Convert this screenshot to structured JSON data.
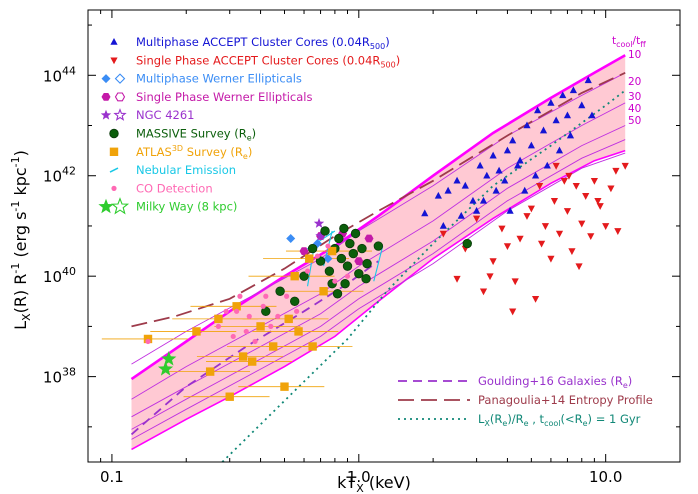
{
  "chart_data": {
    "type": "scatter",
    "title": "",
    "xlabel": "kT",
    "xlabel_sub": "X",
    "xlabel_unit": "(keV)",
    "ylabel_main": "L",
    "ylabel_sub": "X",
    "ylabel_rest": "(R) R",
    "ylabel_sup": "-1",
    "ylabel_units_a": "(erg s",
    "ylabel_units_b": " kpc",
    "ylabel_units_c": ")",
    "xscale": "log",
    "yscale": "log",
    "xlim": [
      0.08,
      20
    ],
    "ylim_log10": [
      36.3,
      45.3
    ],
    "x_ticks": [
      {
        "value": 0.1,
        "label": "0.1"
      },
      {
        "value": 1.0,
        "label": "1.0"
      },
      {
        "value": 10.0,
        "label": "10.0"
      }
    ],
    "y_ticks": [
      {
        "exp": 38,
        "base": "10",
        "sup": "38"
      },
      {
        "exp": 40,
        "base": "10",
        "sup": "40"
      },
      {
        "exp": 42,
        "base": "10",
        "sup": "42"
      },
      {
        "exp": 44,
        "base": "10",
        "sup": "44"
      }
    ],
    "legend_top": [
      {
        "name": "Multiphase ACCEPT Cluster Cores (0.04R",
        "sub": "500",
        "tail": ")",
        "color": "#1414d4",
        "marker": "tri-up"
      },
      {
        "name": "Single Phase ACCEPT Cluster Cores (0.04R",
        "sub": "500",
        "tail": ")",
        "color": "#e41a1c",
        "marker": "tri-down"
      },
      {
        "name": "Multiphase Werner Ellipticals",
        "color": "#3b8df5",
        "marker": "diamond"
      },
      {
        "name": "Single Phase Werner Ellipticals",
        "color": "#c41aa8",
        "marker": "hexagon"
      },
      {
        "name": "NGC 4261",
        "color": "#9a32cd",
        "marker": "star"
      },
      {
        "name": "MASSIVE Survey (R",
        "sub": "e",
        "tail": ")",
        "color": "#0b5e0b",
        "marker": "circle"
      },
      {
        "name": "ATLAS",
        "sup": "3D",
        "tail2": " Survey (R",
        "sub": "e",
        "tail": ")",
        "color": "#f0a30a",
        "marker": "square"
      },
      {
        "name": "Nebular Emission",
        "color": "#18c8e6",
        "marker": "dash"
      },
      {
        "name": "CO Detection",
        "color": "#ff69b4",
        "marker": "dot"
      },
      {
        "name": "Milky Way (8 kpc)",
        "color": "#2ecc2e",
        "marker": "bigstar"
      }
    ],
    "legend_bottom": [
      {
        "name": "Goulding+16 Galaxies (R",
        "sub": "e",
        "tail": ")",
        "color": "#9932cc",
        "style": "dash"
      },
      {
        "name": "Panagoulia+14 Entropy Profile",
        "color": "#9e3b4b",
        "style": "longdash"
      },
      {
        "name": "L",
        "sub": "X",
        "tail": "(R",
        "sub2": "e",
        "tail2": ")/R",
        "sub3": "e",
        "tail3": " , t",
        "sub4": "cool",
        "tail4": "(<R",
        "sub5": "e",
        "tail5": ") = 1 Gyr",
        "color": "#118877",
        "style": "dot"
      }
    ],
    "tcool_header": "t",
    "tcool_header_sub": "cool",
    "tcool_header_tail": "/t",
    "tcool_header_sub2": "ff",
    "tcool_labels": [
      {
        "label": "10",
        "log_y": 44.0
      },
      {
        "label": "20",
        "log_y": 43.4
      },
      {
        "label": "30",
        "log_y": 42.95
      },
      {
        "label": "40",
        "log_y": 42.7
      },
      {
        "label": "50",
        "log_y": 42.42
      }
    ],
    "tcool_lines": [
      [
        [
          0.12,
          38.25
        ],
        [
          0.2,
          38.9
        ],
        [
          0.4,
          39.7
        ],
        [
          0.7,
          40.35
        ],
        [
          1.0,
          40.9
        ],
        [
          2.0,
          41.8
        ],
        [
          4.0,
          42.8
        ],
        [
          8.0,
          43.6
        ],
        [
          12.0,
          44.05
        ]
      ],
      [
        [
          0.12,
          37.55
        ],
        [
          0.2,
          38.2
        ],
        [
          0.4,
          39.0
        ],
        [
          0.7,
          39.65
        ],
        [
          1.0,
          40.2
        ],
        [
          2.0,
          41.1
        ],
        [
          4.0,
          42.15
        ],
        [
          8.0,
          43.0
        ],
        [
          12.0,
          43.45
        ]
      ],
      [
        [
          0.12,
          37.2
        ],
        [
          0.2,
          37.8
        ],
        [
          0.4,
          38.6
        ],
        [
          0.7,
          39.25
        ],
        [
          1.0,
          39.8
        ],
        [
          2.0,
          40.7
        ],
        [
          4.0,
          41.75
        ],
        [
          8.0,
          42.6
        ],
        [
          12.0,
          43.0
        ]
      ],
      [
        [
          0.12,
          36.95
        ],
        [
          0.2,
          37.55
        ],
        [
          0.4,
          38.35
        ],
        [
          0.7,
          39.0
        ],
        [
          1.0,
          39.55
        ],
        [
          2.0,
          40.45
        ],
        [
          4.0,
          41.5
        ],
        [
          8.0,
          42.35
        ],
        [
          12.0,
          42.72
        ]
      ],
      [
        [
          0.12,
          36.75
        ],
        [
          0.2,
          37.35
        ],
        [
          0.4,
          38.15
        ],
        [
          0.7,
          38.8
        ],
        [
          1.0,
          39.35
        ],
        [
          2.0,
          40.25
        ],
        [
          4.0,
          41.3
        ],
        [
          8.0,
          42.15
        ],
        [
          12.0,
          42.45
        ]
      ]
    ],
    "band_upper": [
      [
        0.12,
        37.95
      ],
      [
        0.2,
        38.7
      ],
      [
        0.3,
        39.3
      ],
      [
        0.5,
        40.0
      ],
      [
        0.8,
        40.6
      ],
      [
        1.2,
        41.2
      ],
      [
        2.0,
        42.0
      ],
      [
        3.5,
        42.85
      ],
      [
        6.0,
        43.55
      ],
      [
        9.0,
        44.05
      ],
      [
        12.0,
        44.4
      ]
    ],
    "band_lower": [
      [
        0.12,
        36.55
      ],
      [
        0.2,
        37.15
      ],
      [
        0.3,
        37.6
      ],
      [
        0.5,
        38.2
      ],
      [
        0.8,
        38.8
      ],
      [
        1.2,
        39.5
      ],
      [
        2.0,
        40.35
      ],
      [
        3.5,
        41.15
      ],
      [
        6.0,
        41.85
      ],
      [
        9.0,
        42.3
      ],
      [
        12.0,
        42.5
      ]
    ],
    "goulding": [
      [
        0.12,
        36.85
      ],
      [
        0.2,
        37.8
      ],
      [
        0.35,
        38.6
      ],
      [
        0.6,
        39.3
      ],
      [
        0.9,
        39.85
      ],
      [
        1.2,
        40.3
      ]
    ],
    "panagoulia": [
      [
        0.12,
        39.0
      ],
      [
        0.18,
        39.2
      ],
      [
        0.3,
        39.55
      ],
      [
        0.5,
        40.15
      ],
      [
        0.8,
        40.8
      ],
      [
        1.2,
        41.3
      ],
      [
        2.0,
        41.9
      ],
      [
        4.0,
        42.8
      ],
      [
        8.0,
        43.65
      ],
      [
        12.0,
        44.05
      ]
    ],
    "tcool_1gyr": [
      [
        0.28,
        36.3
      ],
      [
        0.4,
        37.05
      ],
      [
        0.6,
        37.9
      ],
      [
        0.9,
        38.75
      ],
      [
        1.3,
        39.7
      ],
      [
        2.0,
        40.65
      ],
      [
        3.5,
        41.8
      ],
      [
        6.0,
        42.6
      ],
      [
        10.0,
        43.4
      ],
      [
        12.0,
        43.7
      ]
    ],
    "series": [
      {
        "name": "Multiphase ACCEPT Cluster Cores",
        "marker": "tri-up",
        "color": "#1414d4",
        "points": [
          [
            1.85,
            41.25
          ],
          [
            2.1,
            41.6
          ],
          [
            2.3,
            41.7
          ],
          [
            2.5,
            41.9
          ],
          [
            2.7,
            41.8
          ],
          [
            2.9,
            41.5
          ],
          [
            3.1,
            42.2
          ],
          [
            3.3,
            42.0
          ],
          [
            3.5,
            42.4
          ],
          [
            3.7,
            42.1
          ],
          [
            4.0,
            42.5
          ],
          [
            4.2,
            42.7
          ],
          [
            4.5,
            42.3
          ],
          [
            4.8,
            43.0
          ],
          [
            5.0,
            42.6
          ],
          [
            5.3,
            43.3
          ],
          [
            5.6,
            42.9
          ],
          [
            6.0,
            43.45
          ],
          [
            6.3,
            43.1
          ],
          [
            6.7,
            43.6
          ],
          [
            7.0,
            43.2
          ],
          [
            7.4,
            43.7
          ],
          [
            8.0,
            43.4
          ],
          [
            8.5,
            43.9
          ],
          [
            2.6,
            41.2
          ],
          [
            3.2,
            41.5
          ],
          [
            3.9,
            41.9
          ],
          [
            4.4,
            42.2
          ],
          [
            5.2,
            42.0
          ],
          [
            6.5,
            42.5
          ],
          [
            2.2,
            41.0
          ],
          [
            3.6,
            41.7
          ],
          [
            4.1,
            41.3
          ],
          [
            7.2,
            42.8
          ],
          [
            5.8,
            42.2
          ],
          [
            3.0,
            41.3
          ],
          [
            4.7,
            41.7
          ],
          [
            8.8,
            43.2
          ]
        ]
      },
      {
        "name": "Single Phase ACCEPT Cluster Cores",
        "marker": "tri-down",
        "color": "#e41a1c",
        "points": [
          [
            2.2,
            40.85
          ],
          [
            2.5,
            39.95
          ],
          [
            2.7,
            40.55
          ],
          [
            3.0,
            41.15
          ],
          [
            3.2,
            39.7
          ],
          [
            3.5,
            40.3
          ],
          [
            3.8,
            40.95
          ],
          [
            4.0,
            40.6
          ],
          [
            4.3,
            39.9
          ],
          [
            4.5,
            40.75
          ],
          [
            4.8,
            41.2
          ],
          [
            5.0,
            41.35
          ],
          [
            5.2,
            39.55
          ],
          [
            5.5,
            40.65
          ],
          [
            5.7,
            41.0
          ],
          [
            6.0,
            40.35
          ],
          [
            6.2,
            41.5
          ],
          [
            6.5,
            40.85
          ],
          [
            6.8,
            41.9
          ],
          [
            7.0,
            41.3
          ],
          [
            7.3,
            40.5
          ],
          [
            7.6,
            41.8
          ],
          [
            8.0,
            41.05
          ],
          [
            8.3,
            41.6
          ],
          [
            8.7,
            40.8
          ],
          [
            9.0,
            41.9
          ],
          [
            9.5,
            41.4
          ],
          [
            10.0,
            41.0
          ],
          [
            10.5,
            41.75
          ],
          [
            11.0,
            42.1
          ],
          [
            12.0,
            42.2
          ],
          [
            6.3,
            42.2
          ],
          [
            7.1,
            42.0
          ],
          [
            5.4,
            41.8
          ],
          [
            9.3,
            41.5
          ],
          [
            4.2,
            39.3
          ],
          [
            3.4,
            40.0
          ],
          [
            7.8,
            40.2
          ],
          [
            11.2,
            40.9
          ]
        ]
      },
      {
        "name": "Multiphase Werner Ellipticals",
        "marker": "diamond",
        "color": "#3b8df5",
        "points": [
          [
            0.53,
            40.75
          ],
          [
            0.68,
            40.65
          ],
          [
            0.75,
            40.35
          ]
        ]
      },
      {
        "name": "Single Phase Werner Ellipticals",
        "marker": "hexagon",
        "color": "#c41aa8",
        "points": [
          [
            0.7,
            40.8
          ],
          [
            0.86,
            40.85
          ],
          [
            1.0,
            40.3
          ],
          [
            1.1,
            40.75
          ],
          [
            0.6,
            40.5
          ]
        ]
      },
      {
        "name": "NGC 4261",
        "marker": "star",
        "color": "#9a32cd",
        "points": [
          [
            0.69,
            41.05
          ],
          [
            0.7,
            40.8
          ]
        ]
      },
      {
        "name": "MASSIVE Survey",
        "marker": "circle",
        "color": "#0b5e0b",
        "points": [
          [
            0.65,
            40.55
          ],
          [
            0.7,
            40.3
          ],
          [
            0.73,
            40.9
          ],
          [
            0.76,
            40.1
          ],
          [
            0.8,
            40.55
          ],
          [
            0.83,
            40.75
          ],
          [
            0.85,
            40.35
          ],
          [
            0.87,
            40.95
          ],
          [
            0.9,
            40.2
          ],
          [
            0.92,
            40.65
          ],
          [
            0.95,
            40.45
          ],
          [
            0.97,
            40.85
          ],
          [
            1.0,
            40.05
          ],
          [
            1.03,
            40.55
          ],
          [
            1.08,
            40.25
          ],
          [
            0.78,
            39.85
          ],
          [
            0.82,
            39.65
          ],
          [
            0.6,
            40.0
          ],
          [
            0.55,
            39.5
          ],
          [
            0.48,
            39.7
          ],
          [
            0.42,
            39.3
          ],
          [
            0.88,
            39.85
          ],
          [
            1.07,
            39.95
          ],
          [
            2.75,
            40.65
          ],
          [
            1.2,
            40.6
          ]
        ]
      },
      {
        "name": "ATLAS3D Survey",
        "marker": "square",
        "color": "#f0a30a",
        "points": [
          [
            0.14,
            38.75
          ],
          [
            0.22,
            38.9
          ],
          [
            0.25,
            38.1
          ],
          [
            0.27,
            39.15
          ],
          [
            0.3,
            37.6
          ],
          [
            0.32,
            39.4
          ],
          [
            0.34,
            38.4
          ],
          [
            0.37,
            38.3
          ],
          [
            0.4,
            39.0
          ],
          [
            0.45,
            38.6
          ],
          [
            0.5,
            37.8
          ],
          [
            0.52,
            39.15
          ],
          [
            0.57,
            38.9
          ],
          [
            0.65,
            38.6
          ],
          [
            0.55,
            40.0
          ],
          [
            0.63,
            40.35
          ],
          [
            0.72,
            39.7
          ],
          [
            0.78,
            40.5
          ]
        ]
      },
      {
        "name": "CO Detection",
        "marker": "dot",
        "color": "#ff69b4",
        "points": [
          [
            0.14,
            38.7
          ],
          [
            0.27,
            39.0
          ],
          [
            0.29,
            39.3
          ],
          [
            0.31,
            38.8
          ],
          [
            0.33,
            39.6
          ],
          [
            0.36,
            39.2
          ],
          [
            0.38,
            38.7
          ],
          [
            0.41,
            39.4
          ],
          [
            0.44,
            39.0
          ],
          [
            0.47,
            39.2
          ],
          [
            0.51,
            39.6
          ],
          [
            0.56,
            39.3
          ],
          [
            0.62,
            40.1
          ],
          [
            0.68,
            40.4
          ],
          [
            0.75,
            40.6
          ],
          [
            0.8,
            39.9
          ],
          [
            0.9,
            40.0
          ],
          [
            0.32,
            39.3
          ],
          [
            0.35,
            38.9
          ],
          [
            0.42,
            39.6
          ]
        ]
      },
      {
        "name": "Milky Way",
        "marker": "bigstar",
        "color": "#2ecc2e",
        "points": [
          [
            0.17,
            38.35
          ],
          [
            0.165,
            38.15
          ]
        ]
      }
    ]
  }
}
